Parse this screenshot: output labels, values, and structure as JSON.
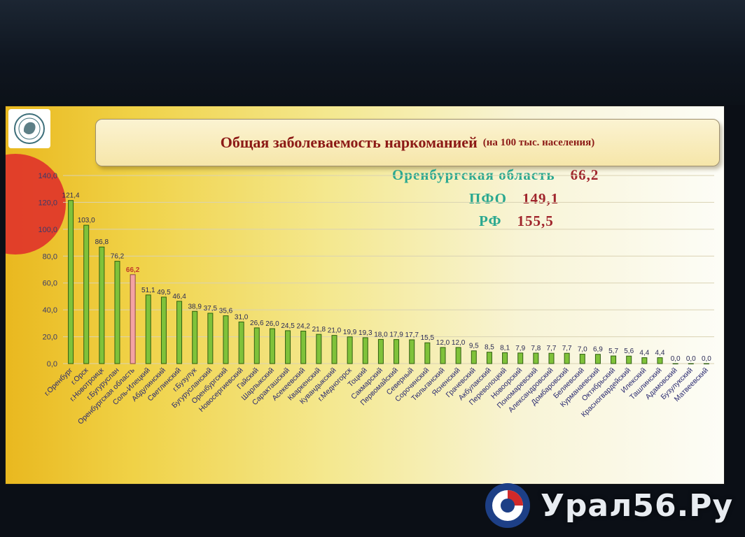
{
  "slide": {
    "title": "Общая заболеваемость наркоманией",
    "title_note": "(на 100 тыс. населения)",
    "stats": [
      {
        "label": "Оренбургская область",
        "value": "66,2"
      },
      {
        "label": "ПФО",
        "value": "149,1"
      },
      {
        "label": "РФ",
        "value": "155,5"
      }
    ]
  },
  "watermark": {
    "text": "Урал56.Ру"
  },
  "colors": {
    "bar": "#7fc23a",
    "bar_highlight": "#f4a3a3",
    "bar_edge": "#2f5f10",
    "value_highlight": "#c0392b"
  },
  "chart_data": {
    "type": "bar",
    "title": "Общая заболеваемость наркоманией (на 100 тыс. населения)",
    "ylim": [
      0,
      140
    ],
    "yticks": [
      "0,0",
      "20,0",
      "40,0",
      "60,0",
      "80,0",
      "100,0",
      "120,0",
      "140,0"
    ],
    "ytick_values": [
      0,
      20,
      40,
      60,
      80,
      100,
      120,
      140
    ],
    "grid": true,
    "highlight_index": 4,
    "categories": [
      "г.Оренбург",
      "г.Орск",
      "г.Новотроицк",
      "г.Бугуруслан",
      "Оренбургская область",
      "Соль-Илецкий",
      "Абдулинский",
      "Светлинский",
      "г.Бузулук",
      "Бугурусланский",
      "Оренбургский",
      "Новосергиевский",
      "Гайский",
      "Шарлыкский",
      "Саракташский",
      "Асекеевский",
      "Кваркенский",
      "Кувандыкский",
      "г.Медногорск",
      "Тоцкий",
      "Сакмарский",
      "Первомайский",
      "Северный",
      "Сорочинский",
      "Тюльганский",
      "Ясненский",
      "Грачевский",
      "Акбулакский",
      "Переволоцкий",
      "Новоорский",
      "Пономаревский",
      "Александровский",
      "Домбаровский",
      "Беляевский",
      "Курманаевский",
      "Октябрьский",
      "Красногвардейский",
      "Илекский",
      "Ташлинский",
      "Адамовский",
      "Бузулукский",
      "Матвеевский"
    ],
    "labels": [
      "121,4",
      "103,0",
      "86,8",
      "76,2",
      "66,2",
      "51,1",
      "49,5",
      "46,4",
      "38,9",
      "37,5",
      "35,6",
      "31,0",
      "26,6",
      "26,0",
      "24,5",
      "24,2",
      "21,8",
      "21,0",
      "19,9",
      "19,3",
      "18,0",
      "17,9",
      "17,7",
      "15,5",
      "12,0",
      "12,0",
      "9,5",
      "8,5",
      "8,1",
      "7,9",
      "7,8",
      "7,7",
      "7,7",
      "7,0",
      "6,9",
      "5,7",
      "5,6",
      "4,4",
      "4,4",
      "0,0",
      "0,0",
      "0,0"
    ],
    "values": [
      121.4,
      103.0,
      86.8,
      76.2,
      66.2,
      51.1,
      49.5,
      46.4,
      38.9,
      37.5,
      35.6,
      31.0,
      26.6,
      26.0,
      24.5,
      24.2,
      21.8,
      21.0,
      19.9,
      19.3,
      18.0,
      17.9,
      17.7,
      15.5,
      12.0,
      12.0,
      9.5,
      8.5,
      8.1,
      7.9,
      7.8,
      7.7,
      7.7,
      7.0,
      6.9,
      5.7,
      5.6,
      4.4,
      4.4,
      0.0,
      0.0,
      0.0
    ]
  }
}
